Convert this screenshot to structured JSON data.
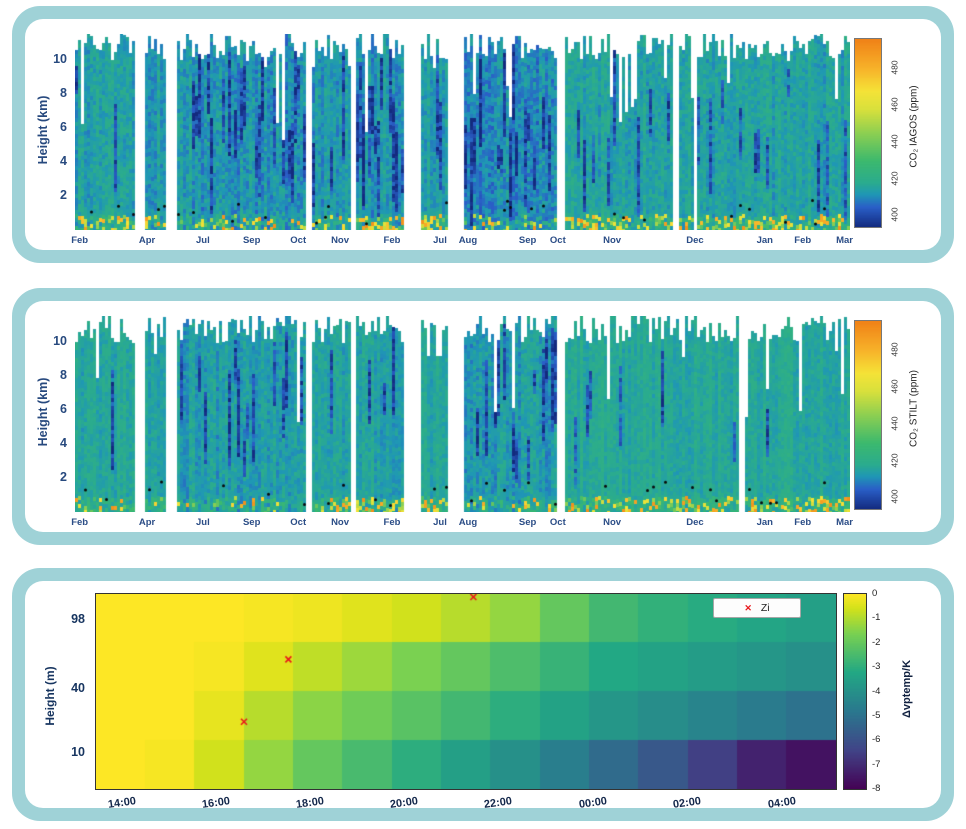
{
  "figure": {
    "panel_bg": "#9fd2d7",
    "card_bg": "#ffffff",
    "axis_label_color": "#27497e",
    "bottom_axis_color": "#14284b",
    "marker_red": "#e8191c"
  },
  "chart_data": [
    {
      "type": "heatmap",
      "name": "co2-iagos-curtain",
      "colorbar_title": "CO₂ IAGOS (ppm)",
      "ylabel": "Height (km)",
      "y_max": 11.5,
      "y_ticks": [
        2,
        4,
        6,
        8,
        10
      ],
      "x_ticks": [
        {
          "label": "Feb",
          "f": 0.006
        },
        {
          "label": "Apr",
          "f": 0.093
        },
        {
          "label": "Jul",
          "f": 0.165
        },
        {
          "label": "Sep",
          "f": 0.228
        },
        {
          "label": "Oct",
          "f": 0.288
        },
        {
          "label": "Nov",
          "f": 0.342
        },
        {
          "label": "Feb",
          "f": 0.409
        },
        {
          "label": "Jul",
          "f": 0.471
        },
        {
          "label": "Aug",
          "f": 0.507
        },
        {
          "label": "Sep",
          "f": 0.584
        },
        {
          "label": "Oct",
          "f": 0.623
        },
        {
          "label": "Nov",
          "f": 0.693
        },
        {
          "label": "Dec",
          "f": 0.8
        },
        {
          "label": "Jan",
          "f": 0.89
        },
        {
          "label": "Feb",
          "f": 0.939
        },
        {
          "label": "Mar",
          "f": 0.993
        }
      ],
      "colorbar_ticks": [
        400,
        420,
        440,
        460,
        480
      ],
      "colorbar_domain": [
        394,
        496
      ],
      "seed": 13,
      "segments": [
        {
          "x0": 0.0,
          "x1": 0.075,
          "base": 415,
          "noise": 9,
          "dark": 0.15,
          "hot": 0.3
        },
        {
          "x0": 0.09,
          "x1": 0.115,
          "base": 414,
          "noise": 8,
          "dark": 0.1,
          "hot": 0.15
        },
        {
          "x0": 0.132,
          "x1": 0.298,
          "base": 412,
          "noise": 10,
          "dark": 0.45,
          "hot": 0.2
        },
        {
          "x0": 0.306,
          "x1": 0.356,
          "base": 413,
          "noise": 9,
          "dark": 0.25,
          "hot": 0.35
        },
        {
          "x0": 0.362,
          "x1": 0.424,
          "base": 413,
          "noise": 9,
          "dark": 0.3,
          "hot": 0.6
        },
        {
          "x0": 0.446,
          "x1": 0.48,
          "base": 414,
          "noise": 8,
          "dark": 0.15,
          "hot": 0.55
        },
        {
          "x0": 0.502,
          "x1": 0.62,
          "base": 411,
          "noise": 10,
          "dark": 0.5,
          "hot": 0.2
        },
        {
          "x0": 0.632,
          "x1": 1.0,
          "base": 415,
          "noise": 8,
          "dark": 0.18,
          "hot": 0.4,
          "gaps": true
        }
      ]
    },
    {
      "type": "heatmap",
      "name": "co2-stilt-curtain",
      "colorbar_title": "CO₂ STILT (ppm)",
      "ylabel": "Height (km)",
      "y_max": 11.5,
      "y_ticks": [
        2,
        4,
        6,
        8,
        10
      ],
      "x_ticks": [
        {
          "label": "Feb",
          "f": 0.006
        },
        {
          "label": "Apr",
          "f": 0.093
        },
        {
          "label": "Jul",
          "f": 0.165
        },
        {
          "label": "Sep",
          "f": 0.228
        },
        {
          "label": "Oct",
          "f": 0.288
        },
        {
          "label": "Nov",
          "f": 0.342
        },
        {
          "label": "Feb",
          "f": 0.409
        },
        {
          "label": "Jul",
          "f": 0.471
        },
        {
          "label": "Aug",
          "f": 0.507
        },
        {
          "label": "Sep",
          "f": 0.584
        },
        {
          "label": "Oct",
          "f": 0.623
        },
        {
          "label": "Nov",
          "f": 0.693
        },
        {
          "label": "Dec",
          "f": 0.8
        },
        {
          "label": "Jan",
          "f": 0.89
        },
        {
          "label": "Feb",
          "f": 0.939
        },
        {
          "label": "Mar",
          "f": 0.993
        }
      ],
      "colorbar_ticks": [
        400,
        420,
        440,
        460,
        480
      ],
      "colorbar_domain": [
        394,
        496
      ],
      "seed": 77,
      "segments": [
        {
          "x0": 0.0,
          "x1": 0.075,
          "base": 417,
          "noise": 7,
          "dark": 0.08,
          "hot": 0.25
        },
        {
          "x0": 0.09,
          "x1": 0.115,
          "base": 416,
          "noise": 6,
          "dark": 0.05,
          "hot": 0.1
        },
        {
          "x0": 0.132,
          "x1": 0.298,
          "base": 414,
          "noise": 8,
          "dark": 0.3,
          "hot": 0.15
        },
        {
          "x0": 0.306,
          "x1": 0.356,
          "base": 415,
          "noise": 7,
          "dark": 0.15,
          "hot": 0.3
        },
        {
          "x0": 0.362,
          "x1": 0.424,
          "base": 415,
          "noise": 7,
          "dark": 0.18,
          "hot": 0.45
        },
        {
          "x0": 0.446,
          "x1": 0.48,
          "base": 416,
          "noise": 6,
          "dark": 0.08,
          "hot": 0.5
        },
        {
          "x0": 0.502,
          "x1": 0.62,
          "base": 413,
          "noise": 8,
          "dark": 0.35,
          "hot": 0.15
        },
        {
          "x0": 0.632,
          "x1": 1.0,
          "base": 417,
          "noise": 6,
          "dark": 0.1,
          "hot": 0.35,
          "gaps": true
        }
      ]
    },
    {
      "type": "heatmap",
      "name": "vptemp-grid",
      "colorbar_title": "Δvptemp/K",
      "ylabel": "Height (m)",
      "y_tick_labels": [
        {
          "label": "98",
          "f": 0.14
        },
        {
          "label": "40",
          "f": 0.49
        },
        {
          "label": "10",
          "f": 0.82
        }
      ],
      "x_ticks": [
        {
          "label": "14:00",
          "f": 0.036
        },
        {
          "label": "16:00",
          "f": 0.163
        },
        {
          "label": "18:00",
          "f": 0.291
        },
        {
          "label": "20:00",
          "f": 0.418
        },
        {
          "label": "22:00",
          "f": 0.545
        },
        {
          "label": "00:00",
          "f": 0.673
        },
        {
          "label": "02:00",
          "f": 0.8
        },
        {
          "label": "04:00",
          "f": 0.928
        }
      ],
      "colorbar_ticks": [
        0,
        -1,
        -2,
        -3,
        -4,
        -5,
        -6,
        -7,
        -8
      ],
      "colorbar_domain": [
        -8,
        0
      ],
      "legend": {
        "label": "Zi"
      },
      "marker_color": "#e8191c",
      "grid_values": [
        [
          0,
          0,
          0,
          -0.1,
          -0.2,
          -0.4,
          -0.6,
          -0.9,
          -1.3,
          -2.0,
          -2.6,
          -2.9,
          -3.1,
          -3.3,
          -3.5
        ],
        [
          0,
          0,
          -0.1,
          -0.4,
          -0.8,
          -1.2,
          -1.6,
          -2.0,
          -2.4,
          -2.8,
          -3.2,
          -3.4,
          -3.6,
          -3.8,
          -4.0
        ],
        [
          0,
          0,
          -0.3,
          -0.9,
          -1.4,
          -1.8,
          -2.2,
          -2.6,
          -3.0,
          -3.4,
          -3.8,
          -4.1,
          -4.4,
          -4.7,
          -5.0
        ],
        [
          0,
          -0.1,
          -0.6,
          -1.3,
          -2.0,
          -2.5,
          -3.0,
          -3.5,
          -4.0,
          -4.6,
          -5.2,
          -5.8,
          -6.5,
          -7.2,
          -7.6
        ]
      ],
      "zi_markers": [
        {
          "fx": 0.51,
          "fy": 0.01
        },
        {
          "fx": 0.26,
          "fy": 0.335
        },
        {
          "fx": 0.2,
          "fy": 0.655
        }
      ]
    }
  ],
  "colormaps": {
    "co2": [
      {
        "t": 0.0,
        "c": "#132a7e"
      },
      {
        "t": 0.108,
        "c": "#2a5fc7"
      },
      {
        "t": 0.176,
        "c": "#1f97b5"
      },
      {
        "t": 0.235,
        "c": "#2aab8f"
      },
      {
        "t": 0.353,
        "c": "#3cb96e"
      },
      {
        "t": 0.5,
        "c": "#8ccf52"
      },
      {
        "t": 0.627,
        "c": "#d8e03c"
      },
      {
        "t": 0.725,
        "c": "#f5e337"
      },
      {
        "t": 0.843,
        "c": "#f7b32a"
      },
      {
        "t": 1.0,
        "c": "#f08217"
      }
    ],
    "vptemp": [
      {
        "t": 0.0,
        "c": "#440154"
      },
      {
        "t": 0.2,
        "c": "#414487"
      },
      {
        "t": 0.4,
        "c": "#2a788e"
      },
      {
        "t": 0.6,
        "c": "#22a884"
      },
      {
        "t": 0.8,
        "c": "#7ad151"
      },
      {
        "t": 0.93,
        "c": "#d4e21a"
      },
      {
        "t": 1.0,
        "c": "#fde725"
      }
    ]
  }
}
